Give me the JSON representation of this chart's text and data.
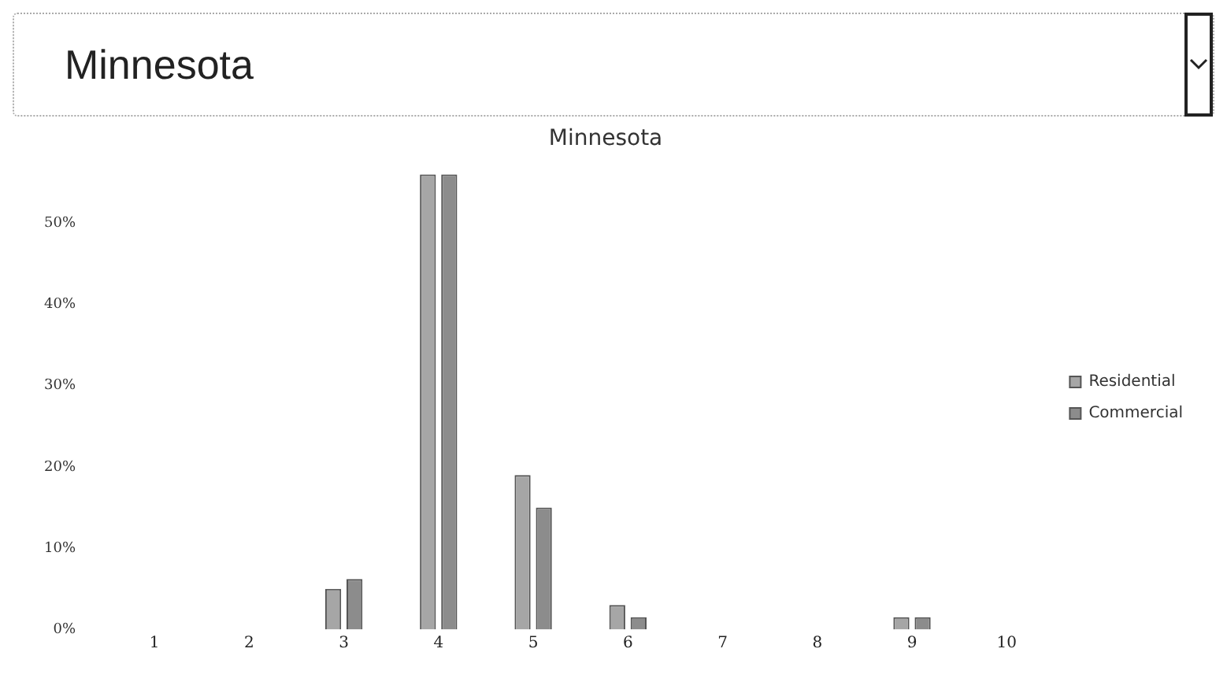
{
  "chart_data": {
    "type": "bar",
    "title": "Minnesota",
    "annotations": [
      "Minnesota"
    ],
    "categories": [
      "1",
      "2",
      "3",
      "4",
      "5",
      "6",
      "7",
      "8",
      "9",
      "10"
    ],
    "series": [
      {
        "name": "Residential",
        "color": "#a6a6a6",
        "values": [
          0,
          0,
          5,
          56,
          19,
          3,
          0,
          0,
          1.5,
          0
        ]
      },
      {
        "name": "Commercial",
        "color": "#8c8c8c",
        "values": [
          0,
          0,
          6.2,
          56,
          15,
          1.5,
          0,
          0,
          1.5,
          0
        ]
      }
    ],
    "ylim": [
      0,
      56
    ],
    "yticks": [
      {
        "value": 0,
        "label": "0%"
      },
      {
        "value": 10,
        "label": "10%"
      },
      {
        "value": 20,
        "label": "20%"
      },
      {
        "value": 30,
        "label": "30%"
      },
      {
        "value": 40,
        "label": "40%"
      },
      {
        "value": 50,
        "label": "50%"
      }
    ],
    "grid": false,
    "legend": "right"
  }
}
